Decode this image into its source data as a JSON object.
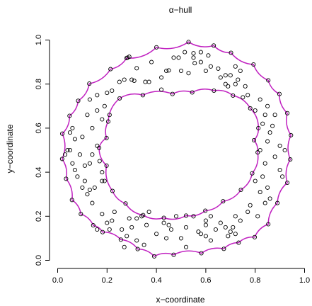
{
  "chart_data": {
    "type": "scatter",
    "title": "α−hull",
    "xlabel": "x−coordinate",
    "ylabel": "y−coordinate",
    "xlim": [
      0,
      1
    ],
    "ylim": [
      0,
      1
    ],
    "x_ticks": [
      {
        "value": 0.0,
        "label": "0.0"
      },
      {
        "value": 0.2,
        "label": "0.2"
      },
      {
        "value": 0.4,
        "label": "0.4"
      },
      {
        "value": 0.6,
        "label": "0.6"
      },
      {
        "value": 0.8,
        "label": "0.8"
      },
      {
        "value": 1.0,
        "label": "1.0"
      }
    ],
    "y_ticks": [
      {
        "value": 0.0,
        "label": "0.0"
      },
      {
        "value": 0.2,
        "label": "0.2"
      },
      {
        "value": 0.4,
        "label": "0.4"
      },
      {
        "value": 0.6,
        "label": "0.6"
      },
      {
        "value": 0.8,
        "label": "0.8"
      },
      {
        "value": 1.0,
        "label": "1.0"
      }
    ],
    "grid": false,
    "point_color": "#000000",
    "hull_color": "#c020c0",
    "outer_hull": [
      [
        0.53,
        0.991
      ],
      [
        0.632,
        0.975
      ],
      [
        0.702,
        0.942
      ],
      [
        0.793,
        0.889
      ],
      [
        0.853,
        0.817
      ],
      [
        0.898,
        0.755
      ],
      [
        0.93,
        0.668
      ],
      [
        0.945,
        0.568
      ],
      [
        0.942,
        0.458
      ],
      [
        0.93,
        0.352
      ],
      [
        0.89,
        0.26
      ],
      [
        0.853,
        0.164
      ],
      [
        0.798,
        0.105
      ],
      [
        0.733,
        0.08
      ],
      [
        0.673,
        0.052
      ],
      [
        0.582,
        0.032
      ],
      [
        0.47,
        0.025
      ],
      [
        0.391,
        0.018
      ],
      [
        0.324,
        0.051
      ],
      [
        0.256,
        0.094
      ],
      [
        0.182,
        0.128
      ],
      [
        0.144,
        0.159
      ],
      [
        0.094,
        0.21
      ],
      [
        0.058,
        0.274
      ],
      [
        0.034,
        0.37
      ],
      [
        0.018,
        0.46
      ],
      [
        0.019,
        0.575
      ],
      [
        0.048,
        0.656
      ],
      [
        0.083,
        0.724
      ],
      [
        0.128,
        0.802
      ],
      [
        0.214,
        0.868
      ],
      [
        0.279,
        0.918
      ],
      [
        0.4,
        0.967
      ]
    ],
    "inner_hull": [
      [
        0.251,
        0.735
      ],
      [
        0.205,
        0.63
      ],
      [
        0.198,
        0.555
      ],
      [
        0.168,
        0.51
      ],
      [
        0.198,
        0.43
      ],
      [
        0.222,
        0.315
      ],
      [
        0.275,
        0.258
      ],
      [
        0.346,
        0.205
      ],
      [
        0.43,
        0.193
      ],
      [
        0.52,
        0.203
      ],
      [
        0.598,
        0.225
      ],
      [
        0.67,
        0.268
      ],
      [
        0.742,
        0.32
      ],
      [
        0.788,
        0.395
      ],
      [
        0.81,
        0.49
      ],
      [
        0.795,
        0.545
      ],
      [
        0.813,
        0.6
      ],
      [
        0.78,
        0.69
      ],
      [
        0.71,
        0.748
      ],
      [
        0.633,
        0.77
      ],
      [
        0.545,
        0.762
      ],
      [
        0.465,
        0.755
      ],
      [
        0.345,
        0.75
      ]
    ],
    "points": [
      [
        0.53,
        0.991
      ],
      [
        0.632,
        0.975
      ],
      [
        0.702,
        0.942
      ],
      [
        0.793,
        0.889
      ],
      [
        0.853,
        0.817
      ],
      [
        0.898,
        0.755
      ],
      [
        0.93,
        0.668
      ],
      [
        0.945,
        0.568
      ],
      [
        0.942,
        0.458
      ],
      [
        0.93,
        0.352
      ],
      [
        0.89,
        0.26
      ],
      [
        0.853,
        0.164
      ],
      [
        0.798,
        0.105
      ],
      [
        0.733,
        0.08
      ],
      [
        0.673,
        0.052
      ],
      [
        0.582,
        0.032
      ],
      [
        0.47,
        0.025
      ],
      [
        0.391,
        0.018
      ],
      [
        0.324,
        0.051
      ],
      [
        0.256,
        0.094
      ],
      [
        0.182,
        0.128
      ],
      [
        0.144,
        0.159
      ],
      [
        0.094,
        0.21
      ],
      [
        0.058,
        0.274
      ],
      [
        0.034,
        0.37
      ],
      [
        0.018,
        0.46
      ],
      [
        0.019,
        0.575
      ],
      [
        0.048,
        0.656
      ],
      [
        0.083,
        0.724
      ],
      [
        0.128,
        0.802
      ],
      [
        0.214,
        0.868
      ],
      [
        0.279,
        0.918
      ],
      [
        0.4,
        0.967
      ],
      [
        0.251,
        0.735
      ],
      [
        0.205,
        0.63
      ],
      [
        0.198,
        0.555
      ],
      [
        0.168,
        0.51
      ],
      [
        0.198,
        0.43
      ],
      [
        0.222,
        0.315
      ],
      [
        0.275,
        0.258
      ],
      [
        0.346,
        0.205
      ],
      [
        0.43,
        0.193
      ],
      [
        0.52,
        0.203
      ],
      [
        0.598,
        0.225
      ],
      [
        0.67,
        0.268
      ],
      [
        0.742,
        0.32
      ],
      [
        0.788,
        0.395
      ],
      [
        0.81,
        0.49
      ],
      [
        0.795,
        0.545
      ],
      [
        0.813,
        0.6
      ],
      [
        0.78,
        0.69
      ],
      [
        0.71,
        0.748
      ],
      [
        0.633,
        0.77
      ],
      [
        0.545,
        0.762
      ],
      [
        0.465,
        0.755
      ],
      [
        0.345,
        0.75
      ],
      [
        0.283,
        0.92
      ],
      [
        0.29,
        0.924
      ],
      [
        0.32,
        0.872
      ],
      [
        0.3,
        0.82
      ],
      [
        0.31,
        0.815
      ],
      [
        0.355,
        0.81
      ],
      [
        0.37,
        0.81
      ],
      [
        0.42,
        0.775
      ],
      [
        0.45,
        0.862
      ],
      [
        0.49,
        0.92
      ],
      [
        0.515,
        0.945
      ],
      [
        0.55,
        0.94
      ],
      [
        0.555,
        0.895
      ],
      [
        0.58,
        0.9
      ],
      [
        0.58,
        0.945
      ],
      [
        0.61,
        0.93
      ],
      [
        0.6,
        0.86
      ],
      [
        0.65,
        0.87
      ],
      [
        0.72,
        0.88
      ],
      [
        0.7,
        0.84
      ],
      [
        0.74,
        0.86
      ],
      [
        0.73,
        0.82
      ],
      [
        0.76,
        0.79
      ],
      [
        0.72,
        0.8
      ],
      [
        0.68,
        0.8
      ],
      [
        0.82,
        0.73
      ],
      [
        0.85,
        0.7
      ],
      [
        0.88,
        0.66
      ],
      [
        0.87,
        0.61
      ],
      [
        0.83,
        0.62
      ],
      [
        0.85,
        0.54
      ],
      [
        0.9,
        0.52
      ],
      [
        0.92,
        0.5
      ],
      [
        0.88,
        0.47
      ],
      [
        0.9,
        0.41
      ],
      [
        0.91,
        0.38
      ],
      [
        0.85,
        0.33
      ],
      [
        0.82,
        0.31
      ],
      [
        0.84,
        0.26
      ],
      [
        0.78,
        0.25
      ],
      [
        0.77,
        0.22
      ],
      [
        0.72,
        0.2
      ],
      [
        0.71,
        0.15
      ],
      [
        0.7,
        0.13
      ],
      [
        0.72,
        0.12
      ],
      [
        0.66,
        0.17
      ],
      [
        0.62,
        0.2
      ],
      [
        0.6,
        0.18
      ],
      [
        0.6,
        0.16
      ],
      [
        0.58,
        0.12
      ],
      [
        0.57,
        0.13
      ],
      [
        0.6,
        0.11
      ],
      [
        0.64,
        0.14
      ],
      [
        0.52,
        0.06
      ],
      [
        0.5,
        0.1
      ],
      [
        0.48,
        0.2
      ],
      [
        0.45,
        0.16
      ],
      [
        0.46,
        0.14
      ],
      [
        0.4,
        0.12
      ],
      [
        0.36,
        0.16
      ],
      [
        0.34,
        0.2
      ],
      [
        0.32,
        0.19
      ],
      [
        0.3,
        0.15
      ],
      [
        0.28,
        0.11
      ],
      [
        0.27,
        0.06
      ],
      [
        0.22,
        0.18
      ],
      [
        0.2,
        0.17
      ],
      [
        0.21,
        0.14
      ],
      [
        0.16,
        0.14
      ],
      [
        0.18,
        0.21
      ],
      [
        0.14,
        0.26
      ],
      [
        0.12,
        0.3
      ],
      [
        0.1,
        0.33
      ],
      [
        0.11,
        0.36
      ],
      [
        0.08,
        0.38
      ],
      [
        0.07,
        0.41
      ],
      [
        0.06,
        0.44
      ],
      [
        0.04,
        0.5
      ],
      [
        0.05,
        0.5
      ],
      [
        0.03,
        0.48
      ],
      [
        0.09,
        0.48
      ],
      [
        0.07,
        0.55
      ],
      [
        0.05,
        0.58
      ],
      [
        0.06,
        0.6
      ],
      [
        0.1,
        0.56
      ],
      [
        0.14,
        0.6
      ],
      [
        0.12,
        0.66
      ],
      [
        0.16,
        0.68
      ],
      [
        0.13,
        0.73
      ],
      [
        0.16,
        0.75
      ],
      [
        0.2,
        0.76
      ],
      [
        0.22,
        0.77
      ],
      [
        0.19,
        0.7
      ],
      [
        0.21,
        0.66
      ],
      [
        0.18,
        0.64
      ],
      [
        0.16,
        0.52
      ],
      [
        0.17,
        0.45
      ],
      [
        0.18,
        0.4
      ],
      [
        0.19,
        0.36
      ],
      [
        0.18,
        0.36
      ],
      [
        0.15,
        0.33
      ],
      [
        0.13,
        0.32
      ],
      [
        0.11,
        0.43
      ],
      [
        0.13,
        0.44
      ],
      [
        0.14,
        0.48
      ],
      [
        0.27,
        0.82
      ],
      [
        0.25,
        0.81
      ],
      [
        0.38,
        0.9
      ],
      [
        0.42,
        0.83
      ],
      [
        0.44,
        0.86
      ],
      [
        0.47,
        0.92
      ],
      [
        0.5,
        0.86
      ],
      [
        0.53,
        0.85
      ],
      [
        0.55,
        0.92
      ],
      [
        0.62,
        0.88
      ],
      [
        0.66,
        0.83
      ],
      [
        0.68,
        0.84
      ],
      [
        0.69,
        0.79
      ],
      [
        0.75,
        0.74
      ],
      [
        0.77,
        0.75
      ],
      [
        0.8,
        0.68
      ],
      [
        0.84,
        0.66
      ],
      [
        0.86,
        0.58
      ],
      [
        0.82,
        0.5
      ],
      [
        0.84,
        0.44
      ],
      [
        0.83,
        0.38
      ],
      [
        0.8,
        0.36
      ],
      [
        0.86,
        0.28
      ],
      [
        0.81,
        0.2
      ],
      [
        0.74,
        0.18
      ],
      [
        0.68,
        0.15
      ],
      [
        0.69,
        0.11
      ],
      [
        0.62,
        0.09
      ],
      [
        0.55,
        0.2
      ],
      [
        0.52,
        0.15
      ],
      [
        0.43,
        0.17
      ],
      [
        0.37,
        0.22
      ],
      [
        0.29,
        0.19
      ],
      [
        0.26,
        0.14
      ],
      [
        0.23,
        0.22
      ],
      [
        0.32,
        0.09
      ],
      [
        0.35,
        0.07
      ],
      [
        0.44,
        0.1
      ]
    ]
  }
}
